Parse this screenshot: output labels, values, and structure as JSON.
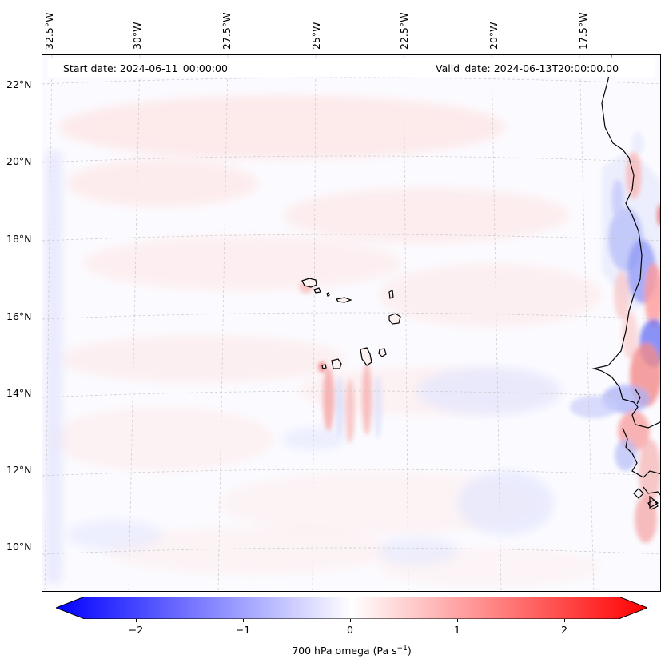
{
  "header": {
    "start_date": "Start date: 2024-06-11_00:00:00",
    "valid_date": "Valid_date: 2024-06-13T20:00:00.00"
  },
  "axes": {
    "lon_labels": [
      "32.5°W",
      "30°W",
      "27.5°W",
      "25°W",
      "22.5°W",
      "20°W",
      "17.5°W"
    ],
    "lat_labels": [
      "22°N",
      "20°N",
      "18°N",
      "16°N",
      "14°N",
      "12°N",
      "10°N"
    ]
  },
  "colorbar": {
    "ticks": [
      "−2",
      "−1",
      "0",
      "1",
      "2"
    ],
    "label_main": "700 hPa omega (Pa s",
    "label_sup": "−1",
    "label_end": ")",
    "min_color": "#0000ff",
    "mid_color": "#ffffff",
    "max_color": "#ff0000"
  },
  "icons": {
    "coastline": "coastline-icon",
    "islands": "island-icon"
  }
}
